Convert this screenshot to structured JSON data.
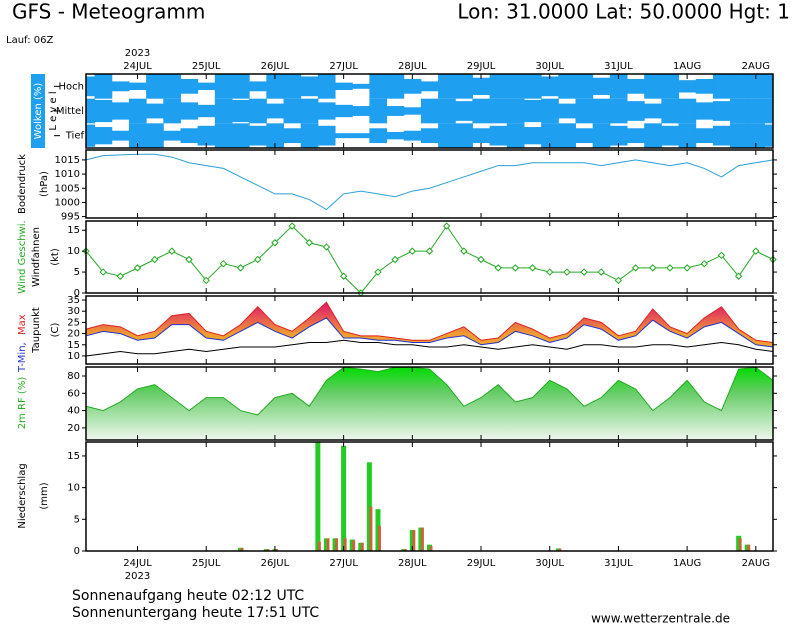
{
  "header": {
    "title": "GFS - Meteogramm",
    "location": "Lon: 31.0000 Lat: 50.0000 Hgt: 1",
    "run": "Lauf: 06Z"
  },
  "footer": {
    "sunrise": "Sonnenaufgang heute 02:12 UTC",
    "sunset": "Sonnenuntergang heute 17:51 UTC",
    "source": "www.wetterzentrale.de"
  },
  "chart_data": [
    {
      "type": "cloud",
      "ylabel": [
        "Wolken (%)",
        "L e v e l"
      ],
      "xlabel": "2023",
      "x": [
        0,
        6,
        12,
        18,
        24,
        30,
        36,
        42,
        48,
        54,
        60,
        66,
        72,
        78,
        84,
        90,
        96,
        102,
        108,
        114,
        120,
        126,
        132,
        138,
        144,
        150,
        156,
        162,
        168,
        174,
        180,
        186,
        192,
        198,
        204,
        210,
        216,
        222,
        228,
        234,
        240
      ],
      "xlim": [
        0,
        240
      ],
      "xticks": [
        {
          "value": 18,
          "label": "24JUL"
        },
        {
          "value": 42,
          "label": "25JUL"
        },
        {
          "value": 66,
          "label": "26JUL"
        },
        {
          "value": 90,
          "label": "27JUL"
        },
        {
          "value": 114,
          "label": "28JUL"
        },
        {
          "value": 138,
          "label": "29JUL"
        },
        {
          "value": 162,
          "label": "30JUL"
        },
        {
          "value": 186,
          "label": "31JUL"
        },
        {
          "value": 210,
          "label": "1AUG"
        },
        {
          "value": 234,
          "label": "2AUG"
        }
      ],
      "series": [
        {
          "name": "Hoch",
          "color": "#1e9ff0",
          "values": [
            80,
            100,
            40,
            30,
            100,
            100,
            60,
            30,
            100,
            100,
            40,
            100,
            100,
            80,
            100,
            30,
            20,
            100,
            100,
            60,
            40,
            100,
            100,
            70,
            100,
            100,
            100,
            80,
            100,
            100,
            70,
            100,
            60,
            100,
            100,
            50,
            60,
            100,
            100,
            100,
            100
          ]
        },
        {
          "name": "Mittel",
          "color": "#1e9ff0",
          "values": [
            100,
            90,
            70,
            100,
            60,
            100,
            70,
            50,
            100,
            90,
            100,
            60,
            100,
            100,
            70,
            50,
            40,
            100,
            40,
            30,
            100,
            100,
            80,
            100,
            100,
            100,
            90,
            100,
            60,
            100,
            100,
            100,
            80,
            60,
            100,
            100,
            70,
            80,
            100,
            100,
            100
          ]
        },
        {
          "name": "Tief",
          "color": "#1e9ff0",
          "values": [
            90,
            70,
            40,
            100,
            100,
            40,
            60,
            80,
            100,
            100,
            80,
            100,
            60,
            100,
            80,
            20,
            20,
            60,
            30,
            40,
            60,
            100,
            100,
            60,
            80,
            100,
            70,
            100,
            100,
            60,
            100,
            80,
            60,
            100,
            80,
            100,
            60,
            80,
            100,
            100,
            90
          ]
        }
      ]
    },
    {
      "type": "line",
      "ylabel": [
        "Bodendruck",
        "(hPa)"
      ],
      "x": [
        0,
        6,
        12,
        18,
        24,
        30,
        36,
        42,
        48,
        54,
        60,
        66,
        72,
        78,
        84,
        90,
        96,
        102,
        108,
        114,
        120,
        126,
        132,
        138,
        144,
        150,
        156,
        162,
        168,
        174,
        180,
        186,
        192,
        198,
        204,
        210,
        216,
        222,
        228,
        234,
        240
      ],
      "xlim": [
        0,
        240
      ],
      "xticks": [
        {
          "value": 18,
          "label": "24JUL"
        },
        {
          "value": 42,
          "label": "25JUL"
        },
        {
          "value": 66,
          "label": "26JUL"
        },
        {
          "value": 90,
          "label": "27JUL"
        },
        {
          "value": 114,
          "label": "28JUL"
        },
        {
          "value": 138,
          "label": "29JUL"
        },
        {
          "value": 162,
          "label": "30JUL"
        },
        {
          "value": 186,
          "label": "31JUL"
        },
        {
          "value": 210,
          "label": "1AUG"
        },
        {
          "value": 234,
          "label": "2AUG"
        }
      ],
      "ylim": [
        994.5,
        1018.5
      ],
      "yticks": [
        995,
        1000,
        1005,
        1010,
        1015
      ],
      "series": [
        {
          "color": "#2a9fd6",
          "values": [
            1015,
            1016.5,
            1016.8,
            1017,
            1017,
            1016,
            1014,
            1013,
            1012,
            1009,
            1006,
            1003,
            1003,
            1001,
            997.5,
            1003,
            1004,
            1003,
            1002,
            1004,
            1005,
            1007,
            1009,
            1011,
            1013,
            1013,
            1014,
            1014,
            1014,
            1014,
            1013,
            1014,
            1015,
            1014,
            1013,
            1014,
            1012,
            1009,
            1013,
            1014,
            1015
          ]
        }
      ]
    },
    {
      "type": "line",
      "markers": true,
      "ylabel": [
        "Windfahnen",
        "(kt)"
      ],
      "x": [
        0,
        6,
        12,
        18,
        24,
        30,
        36,
        42,
        48,
        54,
        60,
        66,
        72,
        78,
        84,
        90,
        96,
        102,
        108,
        114,
        120,
        126,
        132,
        138,
        144,
        150,
        156,
        162,
        168,
        174,
        180,
        186,
        192,
        198,
        204,
        210,
        216,
        222,
        228,
        234,
        240
      ],
      "xlim": [
        0,
        240
      ],
      "xticks": [
        {
          "value": 18,
          "label": "24JUL"
        },
        {
          "value": 42,
          "label": "25JUL"
        },
        {
          "value": 66,
          "label": "26JUL"
        },
        {
          "value": 90,
          "label": "27JUL"
        },
        {
          "value": 114,
          "label": "28JUL"
        },
        {
          "value": 138,
          "label": "29JUL"
        },
        {
          "value": 162,
          "label": "30JUL"
        },
        {
          "value": 186,
          "label": "31JUL"
        },
        {
          "value": 210,
          "label": "1AUG"
        },
        {
          "value": 234,
          "label": "2AUG"
        }
      ],
      "ylim": [
        0,
        17.2
      ],
      "yticks": [
        0,
        5,
        10,
        15
      ],
      "series": [
        {
          "name": "Wind Geschwi.",
          "color": "#22aa22",
          "values": [
            10,
            5,
            4,
            6,
            8,
            10,
            8,
            3,
            7,
            6,
            8,
            12,
            16,
            12,
            11,
            4,
            0,
            5,
            8,
            10,
            10,
            16,
            10,
            8,
            6,
            6,
            6,
            5,
            5,
            5,
            5,
            3,
            6,
            6,
            6,
            6,
            7,
            9,
            4,
            10,
            8
          ]
        }
      ]
    },
    {
      "type": "band",
      "ylabel": [
        "(C)"
      ],
      "x": [
        0,
        6,
        12,
        18,
        24,
        30,
        36,
        42,
        48,
        54,
        60,
        66,
        72,
        78,
        84,
        90,
        96,
        102,
        108,
        114,
        120,
        126,
        132,
        138,
        144,
        150,
        156,
        162,
        168,
        174,
        180,
        186,
        192,
        198,
        204,
        210,
        216,
        222,
        228,
        234,
        240
      ],
      "xlim": [
        0,
        240
      ],
      "xticks": [
        {
          "value": 18,
          "label": "24JUL"
        },
        {
          "value": 42,
          "label": "25JUL"
        },
        {
          "value": 66,
          "label": "26JUL"
        },
        {
          "value": 90,
          "label": "27JUL"
        },
        {
          "value": 114,
          "label": "28JUL"
        },
        {
          "value": 138,
          "label": "29JUL"
        },
        {
          "value": 162,
          "label": "30JUL"
        },
        {
          "value": 186,
          "label": "31JUL"
        },
        {
          "value": 210,
          "label": "1AUG"
        },
        {
          "value": 234,
          "label": "2AUG"
        }
      ],
      "ylim": [
        6.4,
        36.8
      ],
      "yticks": [
        10,
        15,
        20,
        25,
        30,
        35
      ],
      "series": [
        {
          "name": "T-Min,",
          "color": "#2233cc",
          "values": [
            19,
            21,
            20,
            17,
            18,
            24,
            24,
            18,
            17,
            21,
            25,
            21,
            18,
            23,
            27,
            18,
            18,
            17,
            17,
            16,
            16,
            18,
            19,
            15,
            16,
            21,
            19,
            16,
            18,
            24,
            22,
            17,
            19,
            26,
            21,
            18,
            23,
            25,
            20,
            15,
            14
          ]
        },
        {
          "name": "Max",
          "color": "#dd2222",
          "values": [
            22,
            24,
            23,
            19,
            21,
            28,
            29,
            21,
            19,
            24,
            32,
            24,
            21,
            27,
            34,
            21,
            19,
            19,
            18,
            17,
            17,
            20,
            23,
            17,
            18,
            25,
            22,
            18,
            20,
            27,
            25,
            19,
            21,
            31,
            23,
            20,
            27,
            32,
            22,
            17,
            16
          ]
        },
        {
          "name": "Taupunkt",
          "color": "#000000",
          "values": [
            10,
            11,
            12,
            11,
            11,
            12,
            13,
            12,
            13,
            14,
            14,
            14,
            15,
            16,
            16,
            17,
            16,
            16,
            15,
            15,
            14,
            14,
            15,
            14,
            13,
            14,
            15,
            14,
            13,
            15,
            15,
            14,
            14,
            15,
            15,
            14,
            15,
            16,
            15,
            13,
            12
          ]
        }
      ]
    },
    {
      "type": "area",
      "ylabel": [
        "2m RF (%)"
      ],
      "x": [
        0,
        6,
        12,
        18,
        24,
        30,
        36,
        42,
        48,
        54,
        60,
        66,
        72,
        78,
        84,
        90,
        96,
        102,
        108,
        114,
        120,
        126,
        132,
        138,
        144,
        150,
        156,
        162,
        168,
        174,
        180,
        186,
        192,
        198,
        204,
        210,
        216,
        222,
        228,
        234,
        240
      ],
      "xlim": [
        0,
        240
      ],
      "xticks": [
        {
          "value": 18,
          "label": "24JUL"
        },
        {
          "value": 42,
          "label": "25JUL"
        },
        {
          "value": 66,
          "label": "26JUL"
        },
        {
          "value": 90,
          "label": "27JUL"
        },
        {
          "value": 114,
          "label": "28JUL"
        },
        {
          "value": 138,
          "label": "29JUL"
        },
        {
          "value": 162,
          "label": "30JUL"
        },
        {
          "value": 186,
          "label": "31JUL"
        },
        {
          "value": 210,
          "label": "1AUG"
        },
        {
          "value": 234,
          "label": "2AUG"
        }
      ],
      "ylim": [
        6,
        90.4
      ],
      "yticks": [
        20,
        40,
        60,
        80
      ],
      "series": [
        {
          "color": "#22aa22",
          "values": [
            45,
            40,
            50,
            65,
            70,
            55,
            40,
            55,
            55,
            40,
            35,
            55,
            60,
            45,
            75,
            90,
            88,
            85,
            90,
            90,
            88,
            70,
            45,
            55,
            70,
            50,
            55,
            75,
            65,
            45,
            55,
            75,
            65,
            40,
            55,
            75,
            50,
            40,
            88,
            90,
            75
          ]
        }
      ]
    },
    {
      "type": "bar",
      "ylabel": [
        "Niederschlag",
        "(mm)"
      ],
      "xlabel": "2023",
      "x": [
        54,
        63,
        66,
        81,
        84,
        87,
        90,
        93,
        96,
        99,
        102,
        111,
        114,
        117,
        120,
        165,
        228,
        231
      ],
      "xlim": [
        0,
        240
      ],
      "xticks": [
        {
          "value": 18,
          "label": "24JUL"
        },
        {
          "value": 42,
          "label": "25JUL"
        },
        {
          "value": 66,
          "label": "26JUL"
        },
        {
          "value": 90,
          "label": "27JUL"
        },
        {
          "value": 114,
          "label": "28JUL"
        },
        {
          "value": 138,
          "label": "29JUL"
        },
        {
          "value": 162,
          "label": "30JUL"
        },
        {
          "value": 186,
          "label": "31JUL"
        },
        {
          "value": 210,
          "label": "1AUG"
        },
        {
          "value": 234,
          "label": "2AUG"
        }
      ],
      "ylim": [
        0,
        17.2
      ],
      "yticks": [
        0,
        5,
        10,
        15
      ],
      "series": [
        {
          "color": "#22cc22",
          "values": [
            0.5,
            0.3,
            0.3,
            17.2,
            2,
            2,
            16.6,
            1.8,
            1.3,
            14,
            6.6,
            0.3,
            3.3,
            3.7,
            1,
            0.4,
            2.4,
            1
          ]
        },
        {
          "color": "#c8643a",
          "values": [
            0.5,
            0.3,
            0.3,
            1.5,
            2,
            2,
            2,
            1.7,
            1.3,
            7,
            4,
            0.3,
            3.3,
            3.7,
            0.8,
            0.4,
            2,
            1
          ]
        }
      ]
    }
  ]
}
